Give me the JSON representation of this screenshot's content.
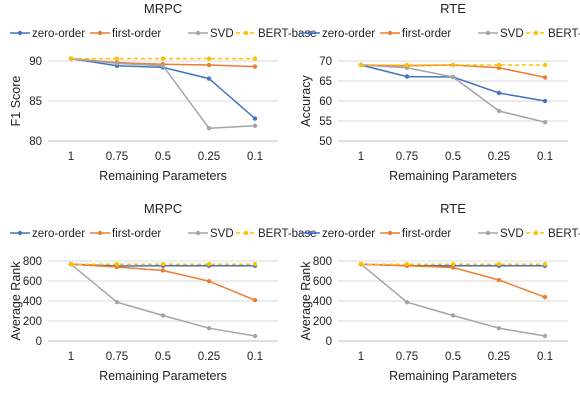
{
  "colors": {
    "zero-order": "#4472c4",
    "first-order": "#ed7d31",
    "SVD": "#a5a5a5",
    "BERT-base": "#ffc000"
  },
  "chart_data": [
    {
      "type": "line",
      "title": "MRPC",
      "xlabel": "Remaining Parameters",
      "ylabel": "F1 Score",
      "categories": [
        "1",
        "0.75",
        "0.5",
        "0.25",
        "0.1"
      ],
      "ylim": [
        80,
        90
      ],
      "yticks": [
        80,
        85,
        90
      ],
      "grid": true,
      "legend": "top",
      "series": [
        {
          "name": "zero-order",
          "values": [
            90.3,
            89.4,
            89.2,
            87.8,
            82.8
          ]
        },
        {
          "name": "first-order",
          "values": [
            90.3,
            89.8,
            89.6,
            89.5,
            89.3
          ]
        },
        {
          "name": "SVD",
          "values": [
            90.3,
            89.7,
            89.4,
            81.6,
            81.9
          ]
        },
        {
          "name": "BERT-base",
          "values": [
            90.3,
            90.3,
            90.3,
            90.3,
            90.3
          ]
        }
      ]
    },
    {
      "type": "line",
      "title": "RTE",
      "xlabel": "Remaining Parameters",
      "ylabel": "Accuracy",
      "categories": [
        "1",
        "0.75",
        "0.5",
        "0.25",
        "0.1"
      ],
      "ylim": [
        50,
        70
      ],
      "yticks": [
        50,
        55,
        60,
        65,
        70
      ],
      "grid": true,
      "legend": "top",
      "series": [
        {
          "name": "zero-order",
          "values": [
            69.0,
            66.1,
            66.0,
            62.0,
            60.0
          ]
        },
        {
          "name": "first-order",
          "values": [
            69.0,
            68.8,
            69.0,
            68.3,
            65.9
          ]
        },
        {
          "name": "SVD",
          "values": [
            69.0,
            68.3,
            66.0,
            57.5,
            54.7
          ]
        },
        {
          "name": "BERT-base",
          "values": [
            69.0,
            69.0,
            69.0,
            69.0,
            69.0
          ]
        }
      ]
    },
    {
      "type": "line",
      "title": "MRPC",
      "xlabel": "Remaining Parameters",
      "ylabel": "Average Rank",
      "categories": [
        "1",
        "0.75",
        "0.5",
        "0.25",
        "0.1"
      ],
      "ylim": [
        0,
        800
      ],
      "yticks": [
        0,
        200,
        400,
        600,
        800
      ],
      "grid": true,
      "legend": "top",
      "series": [
        {
          "name": "zero-order",
          "values": [
            768,
            750,
            752,
            752,
            752
          ]
        },
        {
          "name": "first-order",
          "values": [
            768,
            740,
            705,
            598,
            408
          ]
        },
        {
          "name": "SVD",
          "values": [
            768,
            388,
            255,
            128,
            50
          ]
        },
        {
          "name": "BERT-base",
          "values": [
            768,
            768,
            768,
            768,
            768
          ]
        }
      ]
    },
    {
      "type": "line",
      "title": "RTE",
      "xlabel": "Remaining Parameters",
      "ylabel": "Average Rank",
      "categories": [
        "1",
        "0.75",
        "0.5",
        "0.25",
        "0.1"
      ],
      "ylim": [
        0,
        800
      ],
      "yticks": [
        0,
        200,
        400,
        600,
        800
      ],
      "grid": true,
      "legend": "top",
      "series": [
        {
          "name": "zero-order",
          "values": [
            768,
            752,
            752,
            752,
            752
          ]
        },
        {
          "name": "first-order",
          "values": [
            768,
            752,
            735,
            610,
            438
          ]
        },
        {
          "name": "SVD",
          "values": [
            768,
            388,
            255,
            128,
            50
          ]
        },
        {
          "name": "BERT-base",
          "values": [
            768,
            768,
            768,
            768,
            768
          ]
        }
      ]
    }
  ]
}
